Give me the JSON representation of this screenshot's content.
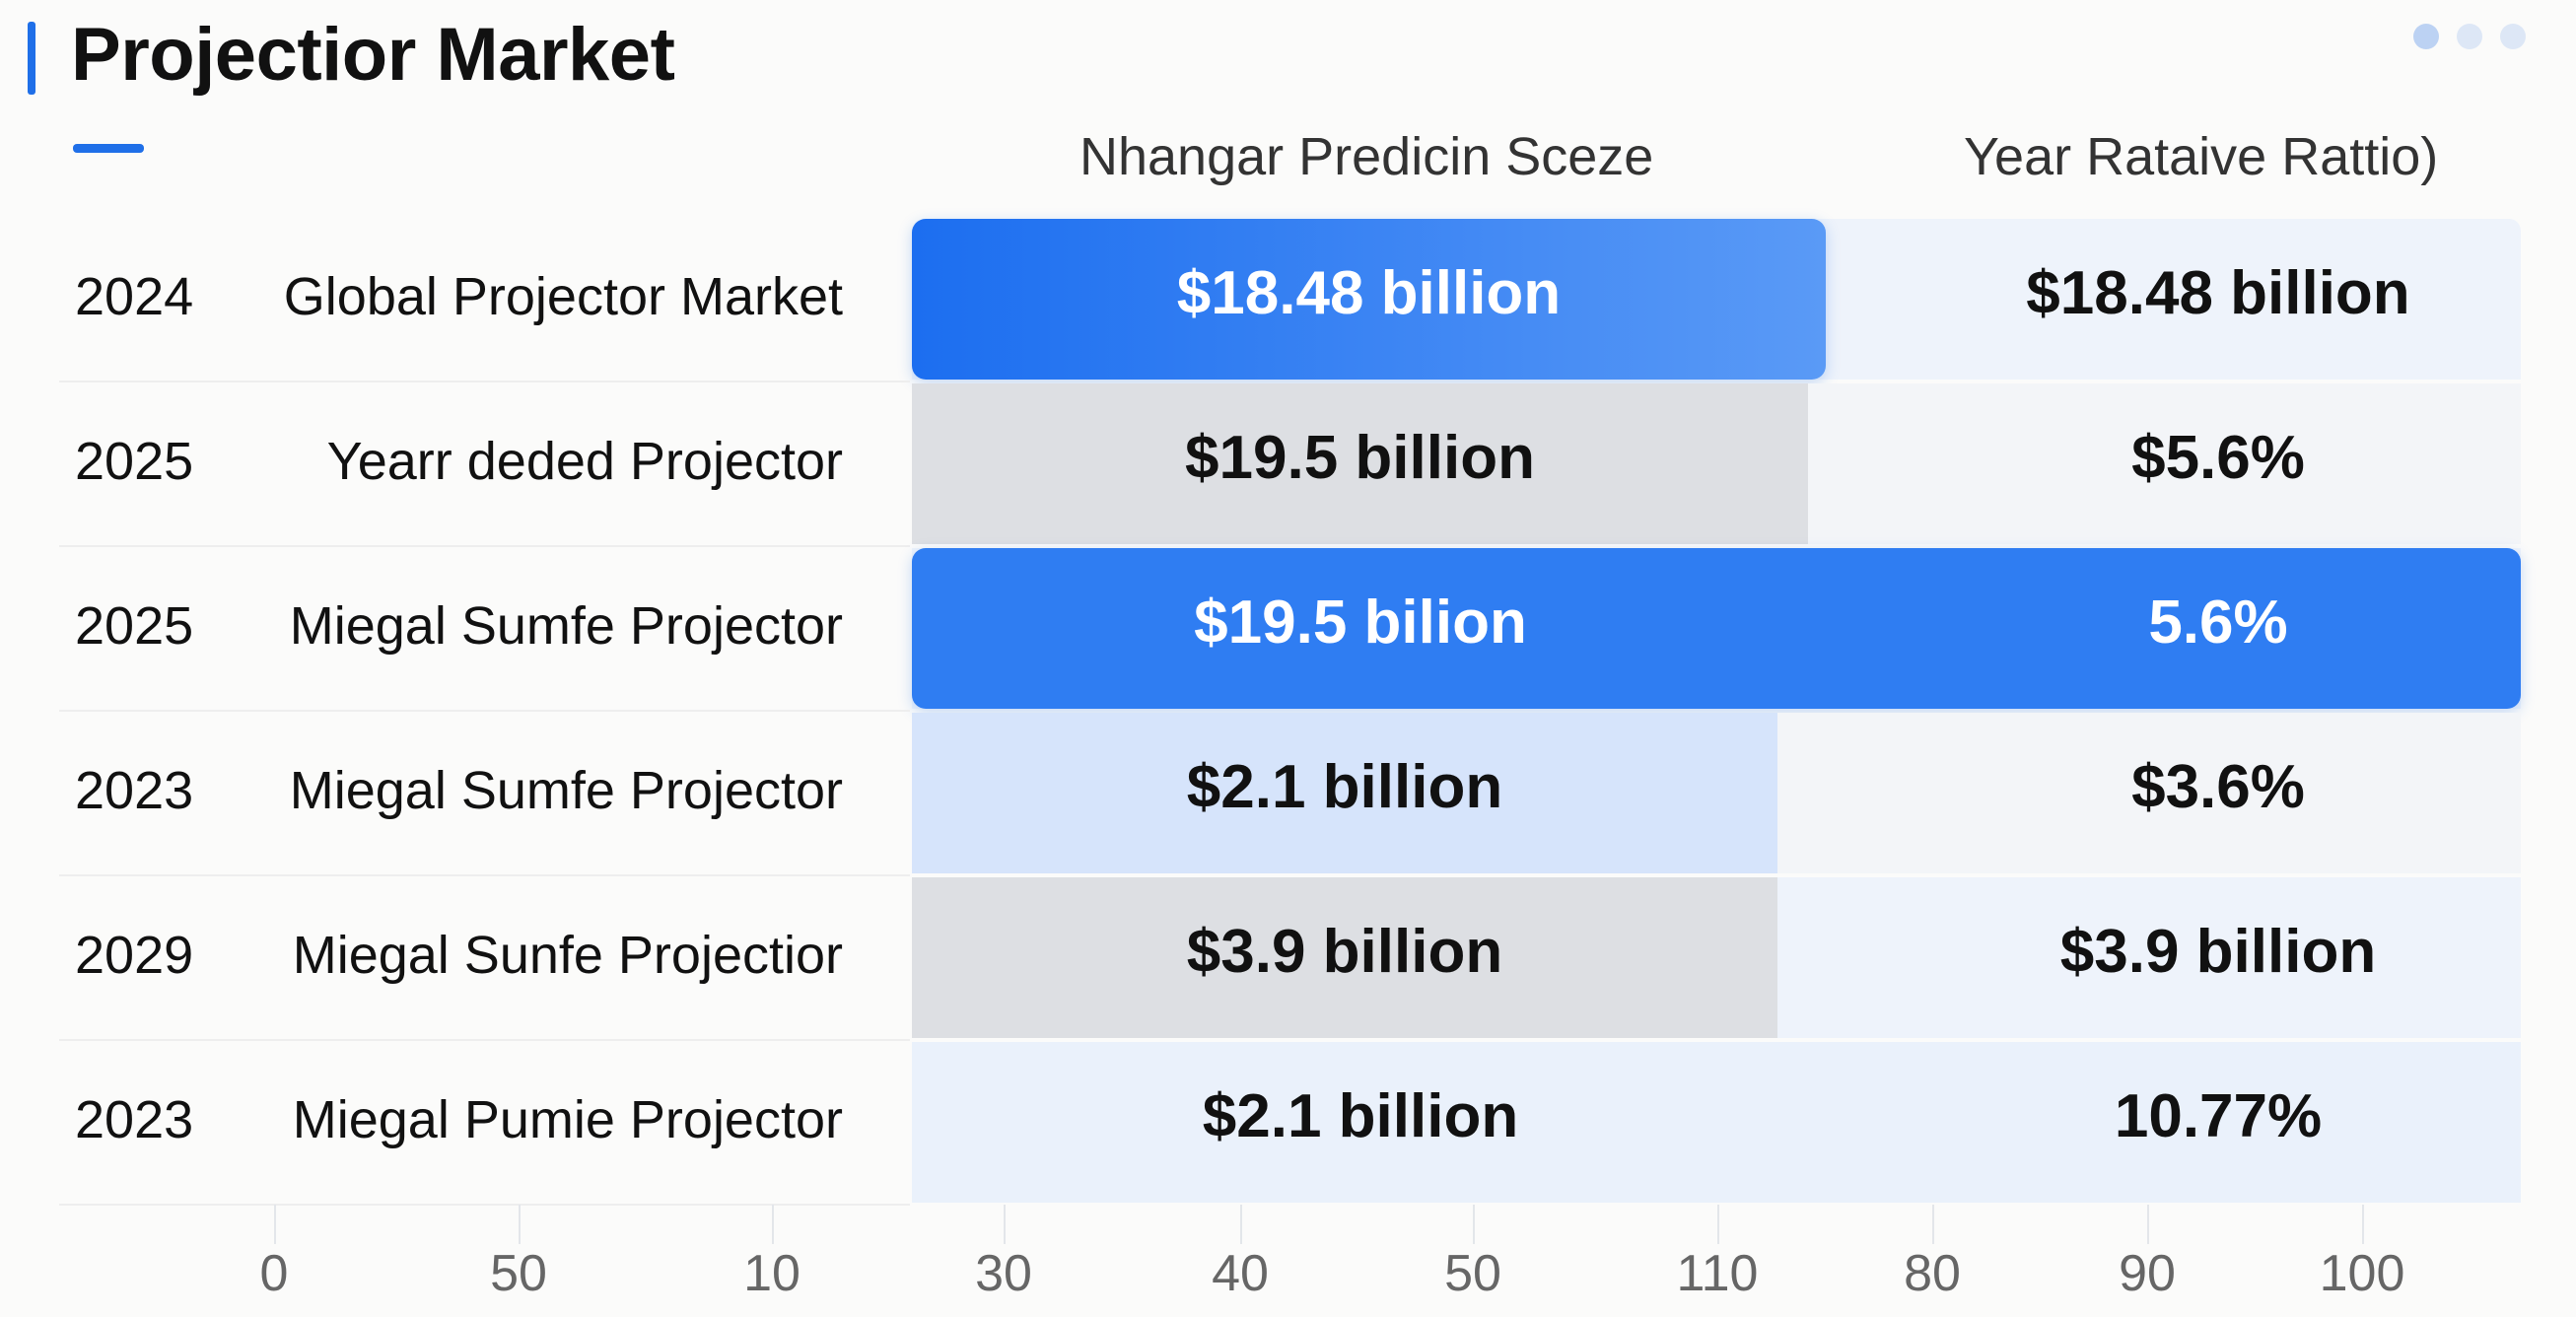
{
  "title": "Projectior Market",
  "colors": {
    "accent": "#1f6fe8",
    "bar_blue": "#2f7df2",
    "bar_blue_light": "#d6e4fb",
    "bar_gray": "#dddfe3",
    "bar_pale": "#eaf1fb",
    "dot_1": "#bcd2f3",
    "dot_2": "#dde7f6"
  },
  "chart_data": {
    "type": "table",
    "title": "Projectior Market",
    "columns": [
      "Nhangar Predicin Sceze",
      "Year Rataive Rattio)"
    ],
    "rows": [
      {
        "year": "2024",
        "label": "Global Projector Market",
        "size": "$18.48 billion",
        "ratio": "$18.48 billion",
        "fill": 0.568,
        "style": "blue-gradient"
      },
      {
        "year": "2025",
        "label": "Yearr deded Projector",
        "size": "$19.5 billion",
        "ratio": "$5.6%",
        "fill": 0.557,
        "style": "gray"
      },
      {
        "year": "2025",
        "label": "Miegal Sumfe Projector",
        "size": "$19.5 bilion",
        "ratio": "5.6%",
        "fill": 1.0,
        "style": "blue"
      },
      {
        "year": "2023",
        "label": "Miegal Sumfe Projector",
        "size": "$2.1 billion",
        "ratio": "$3.6%",
        "fill": 0.538,
        "style": "light-blue"
      },
      {
        "year": "2029",
        "label": "Miegal Sunfe Projectior",
        "size": "$3.9 billion",
        "ratio": "$3.9 billion",
        "fill": 0.538,
        "style": "gray"
      },
      {
        "year": "2023",
        "label": "Miegal Pumie Projector",
        "size": "$2.1 billion",
        "ratio": "10.77%",
        "fill": 1.0,
        "style": "pale"
      }
    ],
    "x_ticks": [
      "0",
      "50",
      "10",
      "30",
      "40",
      "50",
      "110",
      "80",
      "90",
      "100"
    ],
    "grid": true
  }
}
